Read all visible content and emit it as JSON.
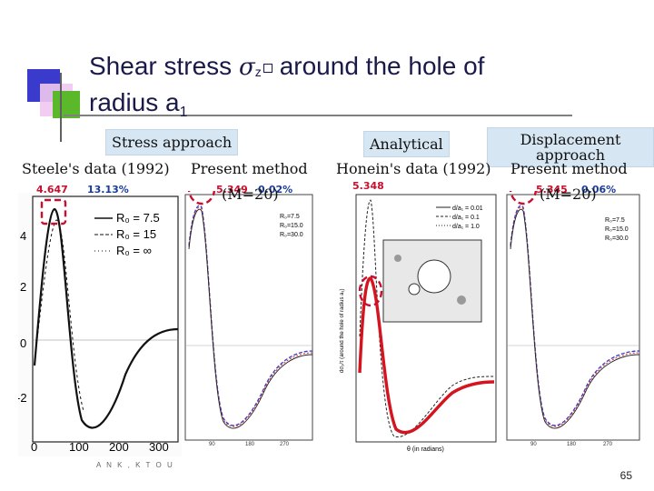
{
  "slide": {
    "title_line1_a": "Shear stress",
    "title_sigma": "σ",
    "title_sub": "z",
    "title_line1_b": "around the hole of",
    "title_line2": "radius a",
    "title_line2_sub": "1",
    "page_number": "65",
    "footer_text": "A N K , K T O U"
  },
  "tags": {
    "stress": "Stress approach",
    "analytical": "Analytical",
    "displacement": "Displacement approach"
  },
  "panels": [
    {
      "title": "Steele's data (1992)",
      "peak_value": "4.647",
      "peak_error": "13.13%"
    },
    {
      "title": "Present method",
      "subtitle": "(M=20)",
      "peak_value": "5.349",
      "peak_error": "0.02%"
    },
    {
      "title": "Honein's data (1992)",
      "peak_value": "5.348"
    },
    {
      "title": "Present method",
      "subtitle": "(M=20)",
      "peak_value": "5.345",
      "peak_error": "0.06%"
    }
  ],
  "steele_axis": {
    "y_ticks": [
      "4",
      "2",
      "0",
      "-2"
    ],
    "x_ticks": [
      "0",
      "100",
      "200",
      "300"
    ],
    "legend": [
      "R₀ = 7.5",
      "R₀ = 15",
      "R₀ = ∞"
    ]
  },
  "small_legend": [
    "R₀=7.5",
    "R₀=15.0",
    "R₀=30.0"
  ],
  "honein_legend": [
    "d/a₁ = 0.01",
    "d/a₁ = 0.1",
    "d/a₁ = 1.0"
  ],
  "honein_axis": {
    "xlabel": "θ (in radians)",
    "ylabel": "dσ₂/τ (around the hole of radius a₁)"
  },
  "colors": {
    "red_marker": "#c8102e",
    "tag_fill": "#d6e6f2",
    "blue_text": "#1a3a9a"
  }
}
